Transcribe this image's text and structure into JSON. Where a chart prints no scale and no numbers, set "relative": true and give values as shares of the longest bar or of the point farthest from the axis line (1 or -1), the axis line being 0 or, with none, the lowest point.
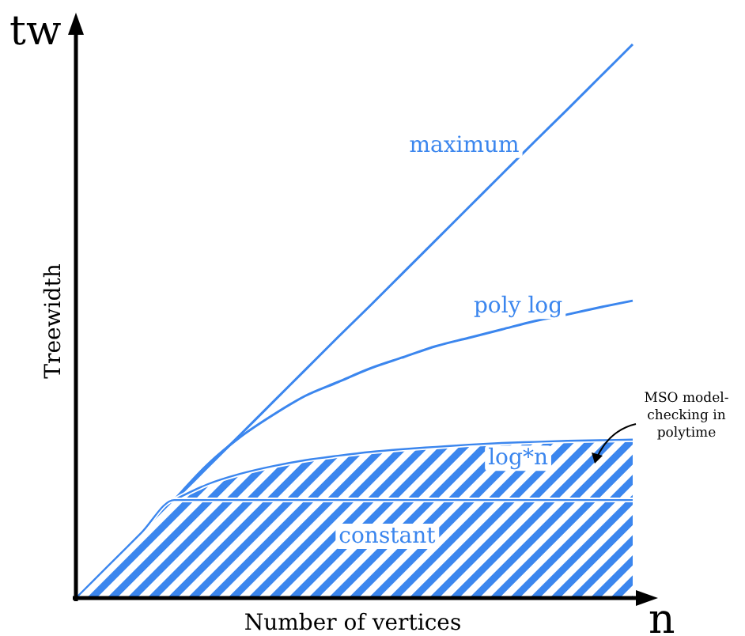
{
  "chart_data": {
    "type": "line",
    "relative": true,
    "xlabel": "Number of vertices",
    "ylabel": "Treewidth",
    "annotations": [
      "tw",
      "n",
      "MSO model-checking in polytime"
    ],
    "categories": [
      null,
      null,
      null,
      null,
      null,
      null,
      null,
      null,
      null,
      null,
      null,
      null,
      null,
      null,
      null,
      null,
      null,
      null
    ],
    "series": [
      {
        "name": "maximum",
        "color": "#3b86ee",
        "values": [
          0,
          0.059,
          0.118,
          0.176,
          0.235,
          0.294,
          0.353,
          0.412,
          0.471,
          0.529,
          0.588,
          0.647,
          0.706,
          0.765,
          0.824,
          0.882,
          0.941,
          1
        ]
      },
      {
        "name": "poly log",
        "color": "#3b86ee",
        "values": [
          null,
          null,
          null,
          0.177,
          0.24,
          0.29,
          0.33,
          0.365,
          0.39,
          0.415,
          0.435,
          0.455,
          0.47,
          0.485,
          0.5,
          0.512,
          0.525,
          0.537
        ]
      },
      {
        "name": "log*n",
        "type": "area",
        "color": "#3b86ee",
        "values": [
          null,
          null,
          null,
          0.177,
          0.205,
          0.224,
          0.238,
          0.249,
          0.257,
          0.264,
          0.269,
          0.273,
          0.277,
          0.28,
          0.282,
          0.284,
          0.285,
          0.286
        ]
      },
      {
        "name": "constant",
        "type": "area",
        "color": "#3b86ee",
        "values": [
          0,
          0.059,
          0.118,
          0.177,
          0.177,
          0.177,
          0.177,
          0.177,
          0.177,
          0.177,
          0.177,
          0.177,
          0.177,
          0.177,
          0.177,
          0.177,
          0.177,
          0.177
        ]
      }
    ]
  }
}
